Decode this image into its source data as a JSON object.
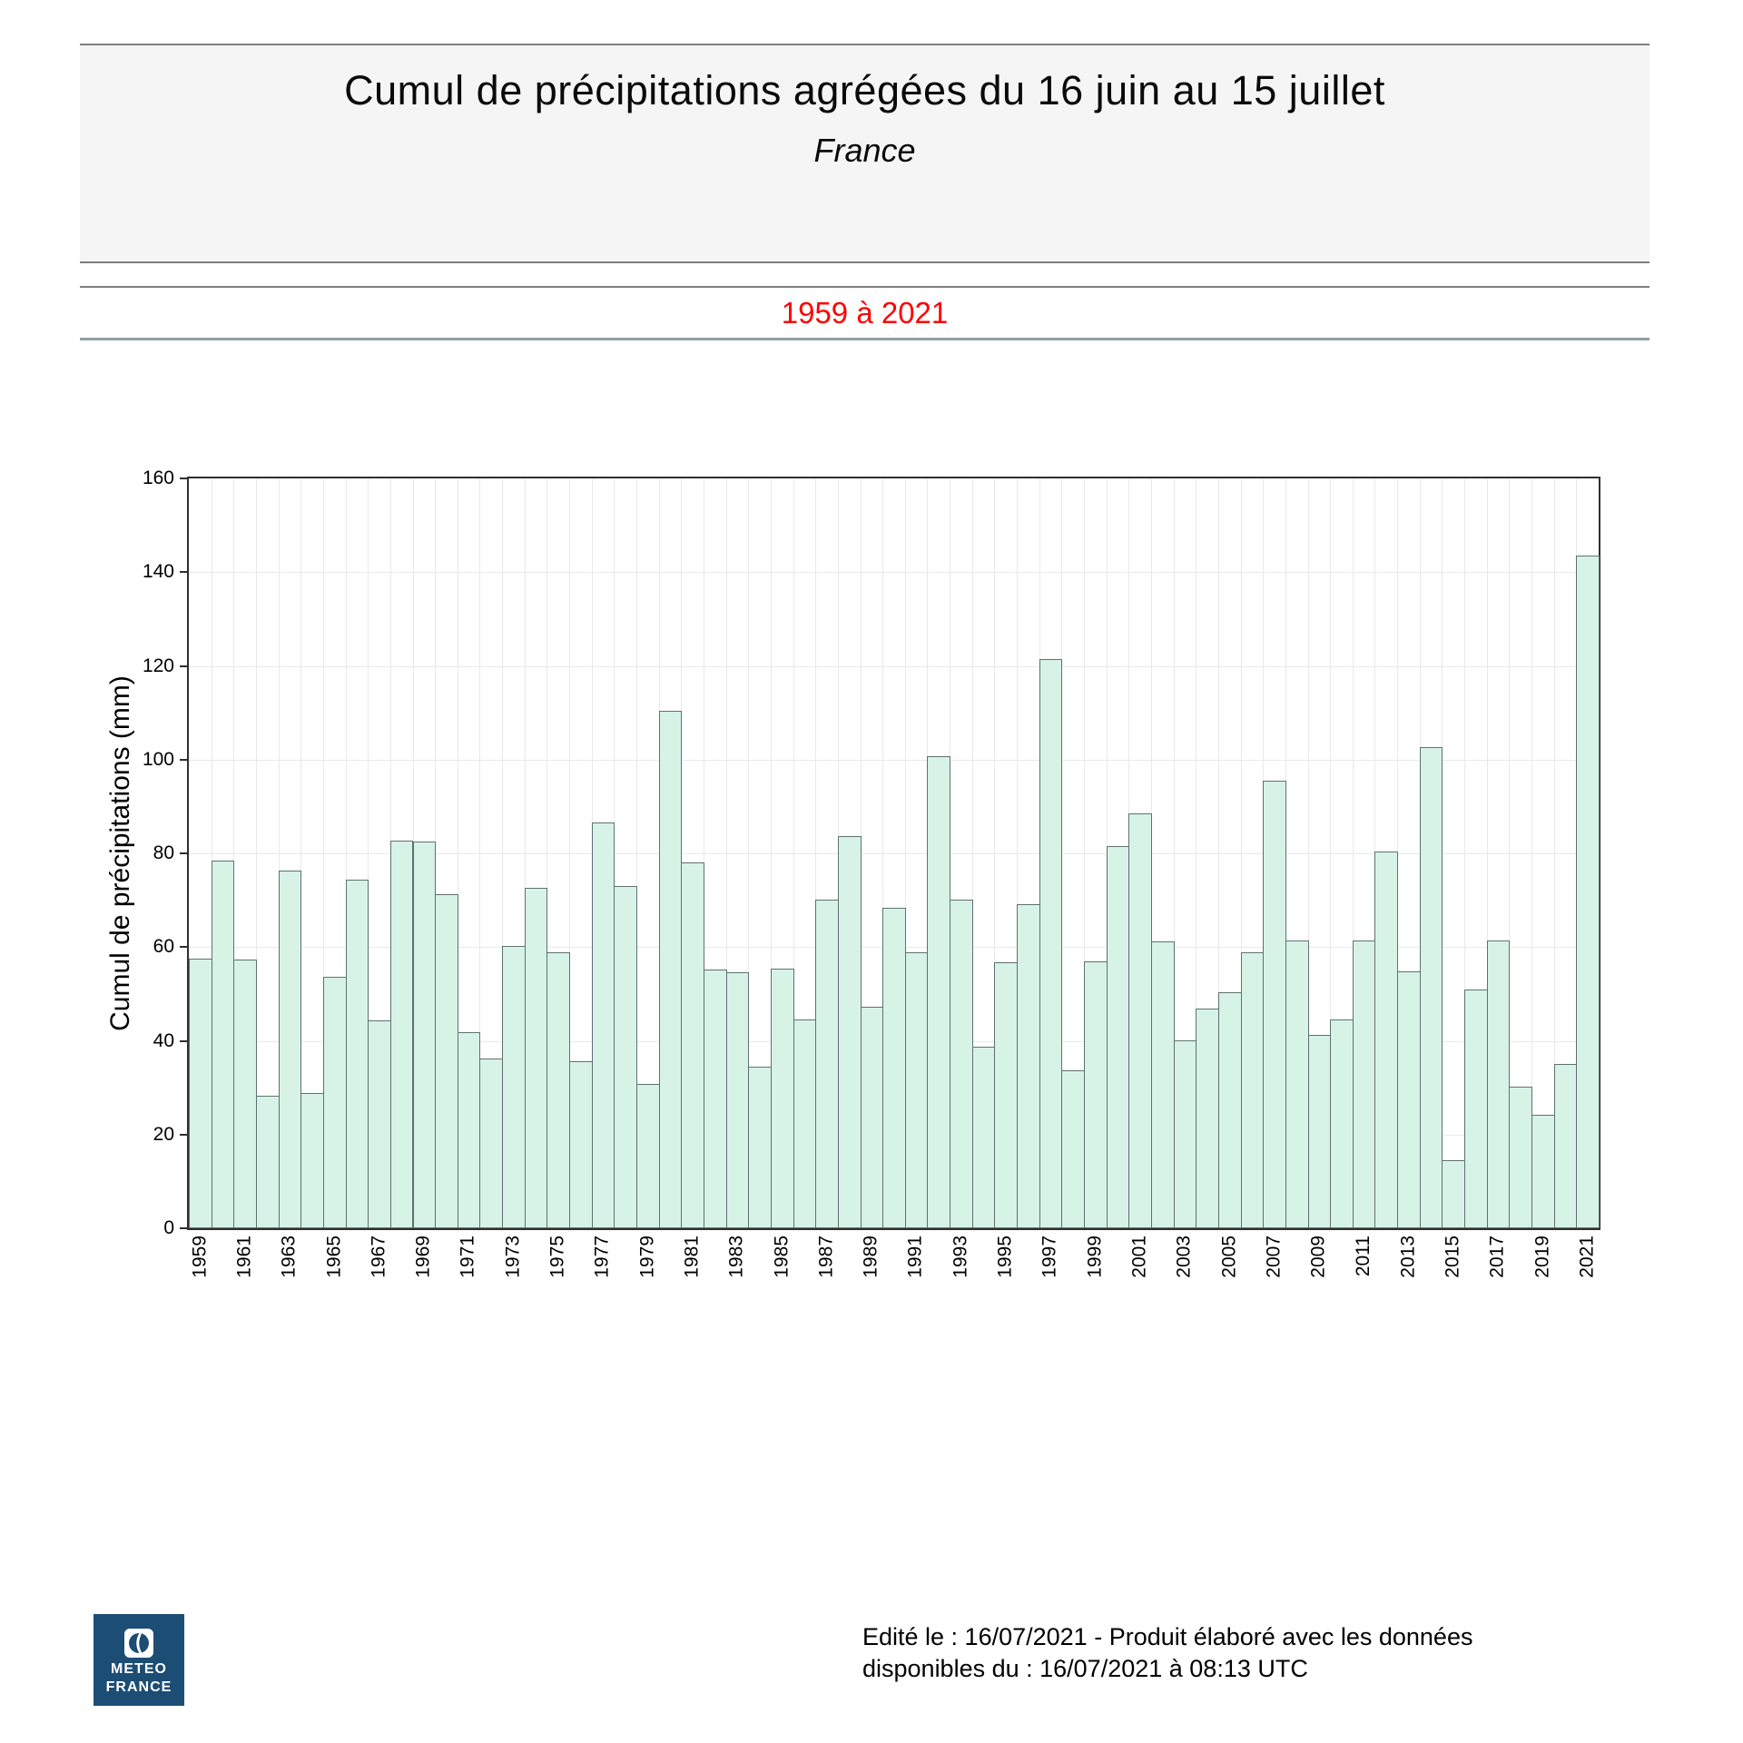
{
  "header": {
    "title": "Cumul de précipitations agrégées du 16 juin au 15 juillet",
    "subtitle": "France",
    "period": "1959 à 2021"
  },
  "chart_data": {
    "type": "bar",
    "title": "Cumul de précipitations agrégées du 16 juin au 15 juillet - France",
    "xlabel": "",
    "ylabel": "Cumul de précipitations (mm)",
    "ylim": [
      0,
      160
    ],
    "ytick_step": 20,
    "grid": true,
    "legend": "none",
    "categories": [
      1959,
      1960,
      1961,
      1962,
      1963,
      1964,
      1965,
      1966,
      1967,
      1968,
      1969,
      1970,
      1971,
      1972,
      1973,
      1974,
      1975,
      1976,
      1977,
      1978,
      1979,
      1980,
      1981,
      1982,
      1983,
      1984,
      1985,
      1986,
      1987,
      1988,
      1989,
      1990,
      1991,
      1992,
      1993,
      1994,
      1995,
      1996,
      1997,
      1998,
      1999,
      2000,
      2001,
      2002,
      2003,
      2004,
      2005,
      2006,
      2007,
      2008,
      2009,
      2010,
      2011,
      2012,
      2013,
      2014,
      2015,
      2016,
      2017,
      2018,
      2019,
      2020,
      2021
    ],
    "values": [
      57.5,
      78.5,
      57.3,
      28.3,
      76.3,
      28.8,
      53.7,
      74.4,
      44.4,
      82.7,
      82.6,
      71.2,
      41.9,
      36.2,
      60.3,
      72.7,
      58.8,
      35.7,
      86.6,
      73.0,
      30.8,
      110.4,
      78.1,
      55.2,
      54.7,
      34.4,
      55.4,
      44.5,
      70.2,
      83.7,
      47.2,
      68.4,
      58.8,
      100.8,
      70.2,
      38.7,
      56.8,
      69.1,
      121.4,
      33.8,
      56.9,
      81.5,
      88.6,
      61.2,
      40.1,
      46.8,
      50.4,
      58.8,
      95.5,
      61.4,
      41.3,
      44.6,
      61.5,
      80.3,
      54.9,
      102.6,
      14.6,
      51.0,
      61.5,
      30.2,
      24.3,
      35.0,
      143.6
    ],
    "x_tick_labels": [
      "1959",
      "1961",
      "1963",
      "1965",
      "1967",
      "1969",
      "1971",
      "1973",
      "1975",
      "1977",
      "1979",
      "1981",
      "1983",
      "1985",
      "1987",
      "1989",
      "1991",
      "1993",
      "1995",
      "1997",
      "1999",
      "2001",
      "2003",
      "2005",
      "2007",
      "2009",
      "2011",
      "2013",
      "2015",
      "2017",
      "2019",
      "2021"
    ],
    "bar_color": "#d7f2e6",
    "bar_edge_color": "#5f7170",
    "grid_color": "#e9e9e9",
    "axis_color": "#2f2f2f"
  },
  "footer": {
    "line1": "Edité le : 16/07/2021 - Produit élaboré avec les données",
    "line2": "disponibles du : 16/07/2021 à 08:13 UTC"
  },
  "logo": {
    "line1": "METEO",
    "line2": "FRANCE",
    "color": "#1c4d74"
  }
}
